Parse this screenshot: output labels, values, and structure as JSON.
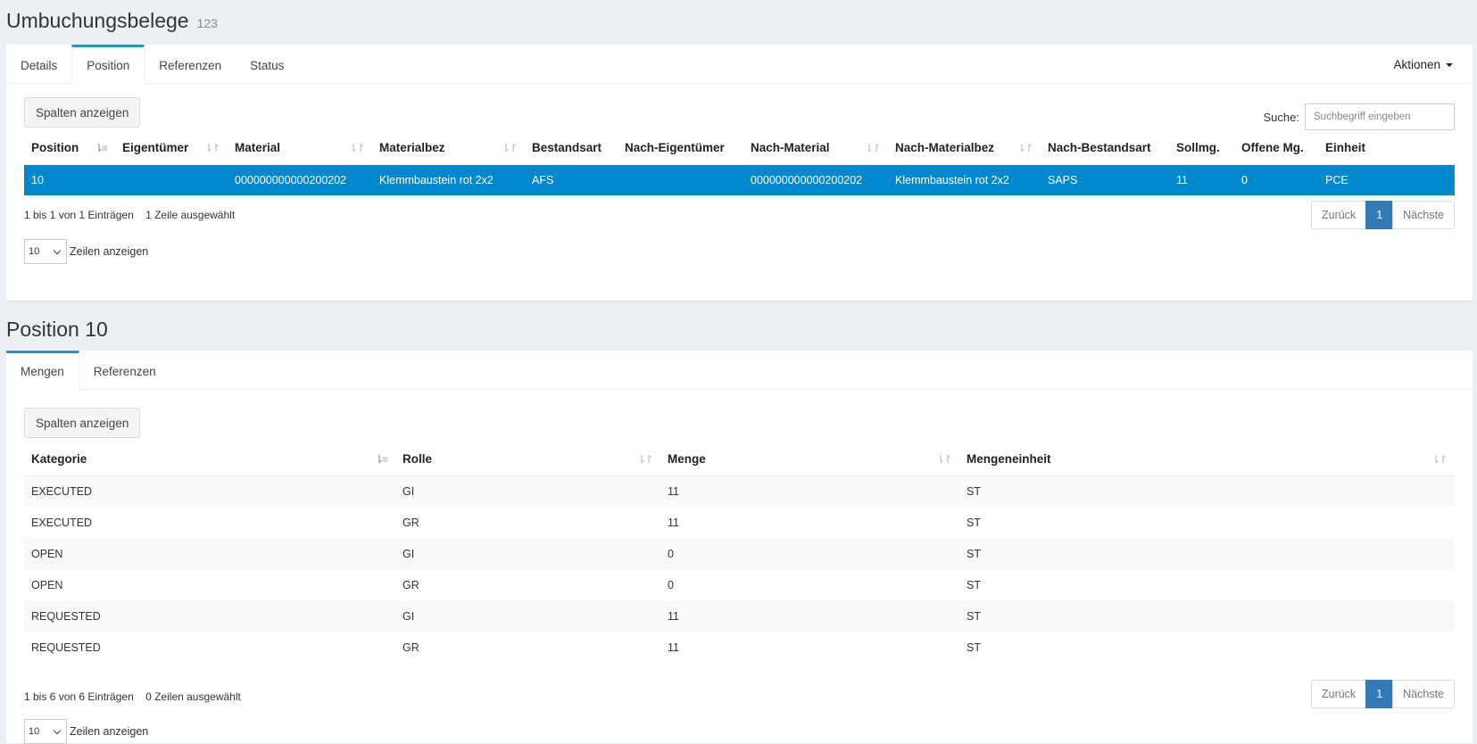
{
  "header": {
    "title": "Umbuchungsbelege",
    "count": "123"
  },
  "top_tabs": [
    {
      "label": "Details"
    },
    {
      "label": "Position"
    },
    {
      "label": "Referenzen"
    },
    {
      "label": "Status"
    }
  ],
  "actions_label": "Aktionen",
  "positions": {
    "columns_button": "Spalten anzeigen",
    "search_label": "Suche:",
    "search_placeholder": "Suchbegriff eingeben",
    "headers": [
      "Position",
      "Eigentümer",
      "Material",
      "Materialbez",
      "Bestandsart",
      "Nach-Eigentümer",
      "Nach-Material",
      "Nach-Materialbez",
      "Nach-Bestandsart",
      "Sollmg.",
      "Offene Mg.",
      "Einheit"
    ],
    "row": [
      "10",
      "",
      "000000000000200202",
      "Klemmbaustein rot 2x2",
      "AFS",
      "",
      "000000000000200202",
      "Klemmbaustein rot 2x2",
      "SAPS",
      "11",
      "0",
      "PCE"
    ],
    "info": "1 bis 1 von 1 Einträgen",
    "selected_info": "1 Zeile ausgewählt",
    "prev": "Zurück",
    "page": "1",
    "next": "Nächste",
    "length_value": "10",
    "length_label": "Zeilen anzeigen"
  },
  "detail": {
    "title": "Position 10",
    "tabs": [
      {
        "label": "Mengen"
      },
      {
        "label": "Referenzen"
      }
    ],
    "columns_button": "Spalten anzeigen",
    "headers": [
      "Kategorie",
      "Rolle",
      "Menge",
      "Mengeneinheit"
    ],
    "rows": [
      [
        "EXECUTED",
        "GI",
        "11",
        "ST"
      ],
      [
        "EXECUTED",
        "GR",
        "11",
        "ST"
      ],
      [
        "OPEN",
        "GI",
        "0",
        "ST"
      ],
      [
        "OPEN",
        "GR",
        "0",
        "ST"
      ],
      [
        "REQUESTED",
        "GI",
        "11",
        "ST"
      ],
      [
        "REQUESTED",
        "GR",
        "11",
        "ST"
      ]
    ],
    "info": "1 bis 6 von 6 Einträgen",
    "selected_info": "0 Zeilen ausgewählt",
    "prev": "Zurück",
    "page": "1",
    "next": "Nächste",
    "length_value": "10",
    "length_label": "Zeilen anzeigen"
  }
}
